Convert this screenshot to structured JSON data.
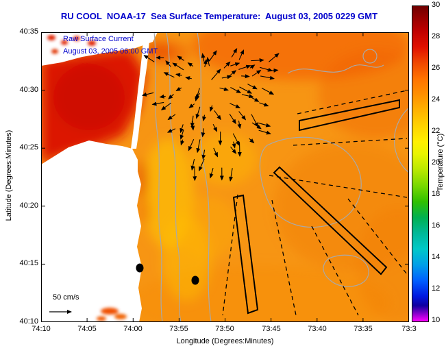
{
  "title": "RU COOL  NOAA-17  Sea Surface Temperature:  August 03, 2005 0229 GMT",
  "overlay": {
    "line1": "Raw Surface Current",
    "line2": "August 03, 2005 06:00 GMT",
    "scale_label": "50 cm/s"
  },
  "axes": {
    "x_label": "Longitude (Degrees:Minutes)",
    "y_label": "Latitude (Degrees:Minutes)",
    "x_ticks": [
      "74:10",
      "74:05",
      "74:00",
      "73:55",
      "73:50",
      "73:45",
      "73:40",
      "73:35",
      "73:3"
    ],
    "y_ticks": [
      "40:35",
      "40:30",
      "40:25",
      "40:20",
      "40:15",
      "40:10"
    ]
  },
  "colorbar": {
    "label": "Temperature (°C)",
    "ticks": [
      "30",
      "28",
      "26",
      "24",
      "22",
      "20",
      "18",
      "16",
      "14",
      "12",
      "10"
    ],
    "min": 10,
    "max": 30
  },
  "colors": {
    "title_blue": "#0000CC",
    "ocean_orange": "#F79513",
    "hot_bay_red": "#CC0800",
    "land_white": "#FFFFFF",
    "contour_gray": "#A9A9A9"
  },
  "chart_data": {
    "type": "heatmap",
    "title": "RU COOL  NOAA-17  Sea Surface Temperature:  August 03, 2005 0229 GMT",
    "xlabel": "Longitude (Degrees:Minutes)",
    "ylabel": "Latitude (Degrees:Minutes)",
    "x_tick_labels": [
      "74:10",
      "74:05",
      "74:00",
      "73:55",
      "73:50",
      "73:45",
      "73:40",
      "73:35",
      "73:3"
    ],
    "y_tick_labels": [
      "40:35",
      "40:30",
      "40:25",
      "40:20",
      "40:15",
      "40:10"
    ],
    "x_range_deg_min": [
      "74:10",
      "73:30"
    ],
    "y_range_deg_min": [
      "40:10",
      "40:35"
    ],
    "colorbar": {
      "label": "Temperature (°C)",
      "min": 10,
      "max": 30,
      "tick_step": 2,
      "palette_top_to_bottom": [
        "dark-red",
        "red",
        "orange-red",
        "orange",
        "yellow",
        "yellow-green",
        "green",
        "teal",
        "cyan",
        "blue",
        "dark-blue",
        "magenta"
      ]
    },
    "field_summary": {
      "shelf_water_temp_c": [
        24,
        27
      ],
      "bay_hot_water_temp_c": [
        27,
        29
      ],
      "nearshore_band_temp_c": [
        22,
        24
      ],
      "description": "Warm orange shelf water; hottest red water in the bay at upper left; slightly cooler yellow band hugging the coast; white area at left is land"
    },
    "overlays": [
      "Cluster of black surface-current vectors near the harbor entrance (upper middle)",
      "Dashed black bearing lines and three solid outlined survey sectors fanning across the eastern half",
      "Two solid black station dots near 74:01W 40:14.5N and 73:57W 40:13.5N",
      "50 cm/s velocity scale arrow at lower left"
    ]
  }
}
